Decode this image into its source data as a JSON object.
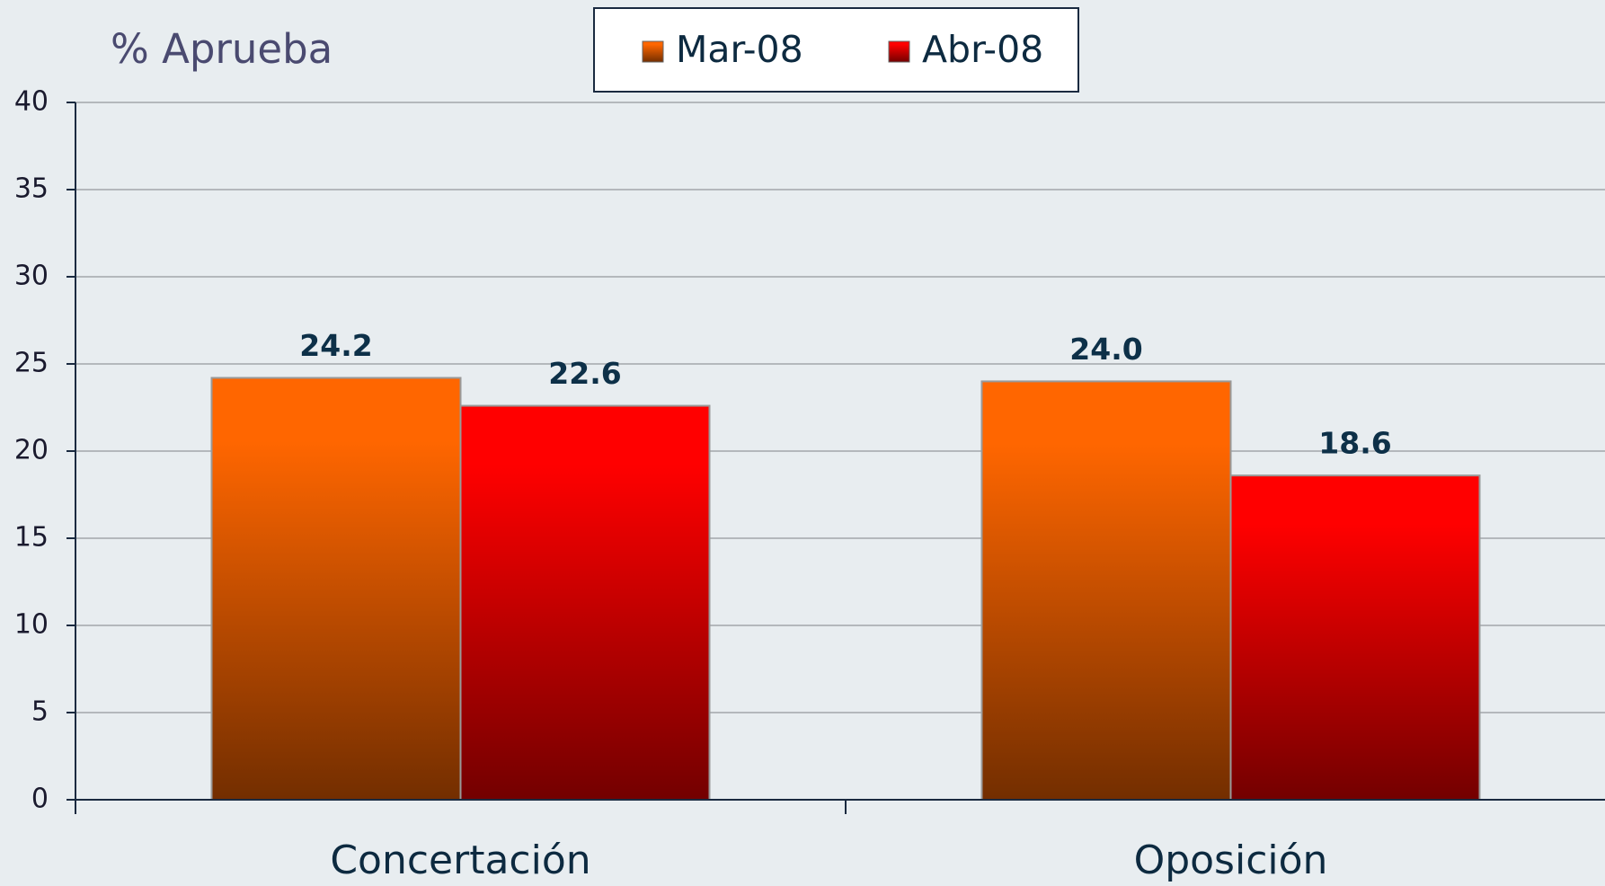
{
  "chart_data": {
    "type": "bar",
    "y_label": "% Aprueba",
    "categories": [
      "Concertación",
      "Oposición"
    ],
    "series": [
      {
        "name": "Mar-08",
        "color": "#ff6600",
        "values": [
          24.2,
          24
        ],
        "value_labels": [
          "24.2",
          "24.0"
        ]
      },
      {
        "name": "Abr-08",
        "color": "#ff0000",
        "values": [
          22.6,
          18.6
        ],
        "value_labels": [
          "22.6",
          "18.6"
        ]
      }
    ],
    "ylim": [
      0,
      40
    ],
    "yticks": [
      0,
      5,
      10,
      15,
      20,
      25,
      30,
      35,
      40
    ],
    "grid": true
  }
}
